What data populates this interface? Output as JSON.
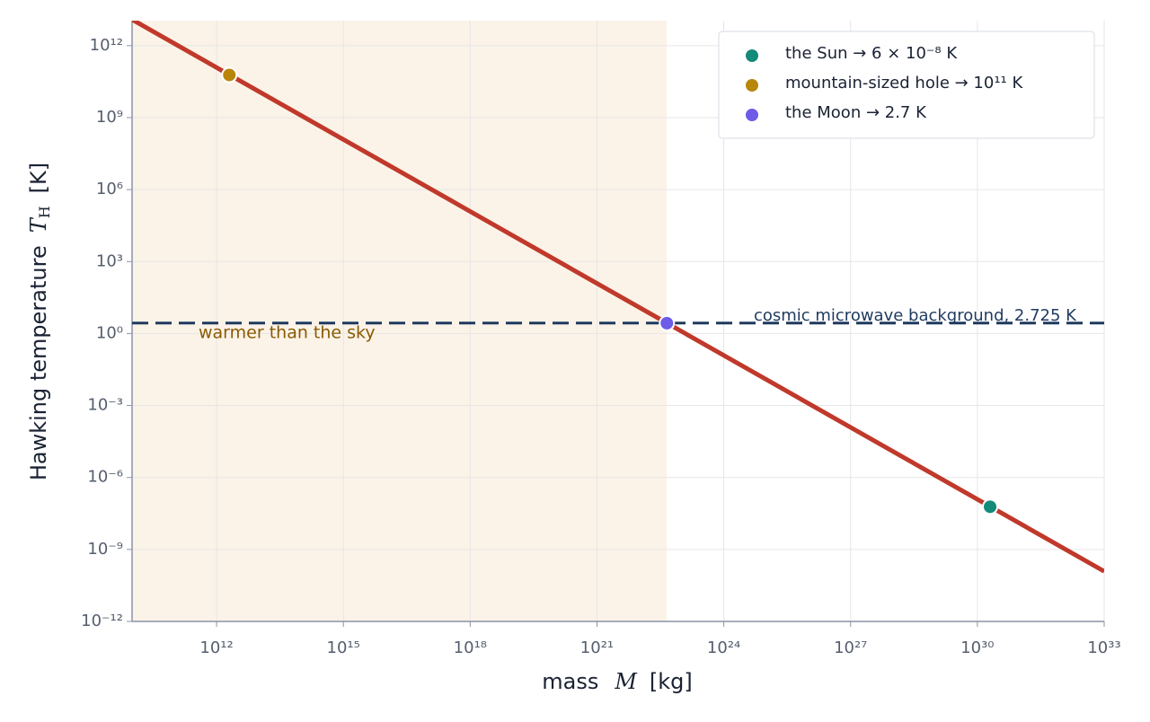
{
  "chart_data": {
    "type": "line",
    "x_label": {
      "text": "mass",
      "symbol": "M",
      "unit": "[kg]"
    },
    "y_label": {
      "text": "Hawking temperature",
      "symbol": "T",
      "subscript": "H",
      "unit": "[K]"
    },
    "xscale": "log",
    "yscale": "log",
    "grid": true,
    "legend": "upper right",
    "xlim": [
      10000000000.0,
      1e+33
    ],
    "xticks": [
      {
        "value": 1000000000000.0,
        "label": "10¹²"
      },
      {
        "value": 1000000000000000.0,
        "label": "10¹⁵"
      },
      {
        "value": 1e+18,
        "label": "10¹⁸"
      },
      {
        "value": 1e+21,
        "label": "10²¹"
      },
      {
        "value": 1e+24,
        "label": "10²⁴"
      },
      {
        "value": 1e+27,
        "label": "10²⁷"
      },
      {
        "value": 1e+30,
        "label": "10³⁰"
      },
      {
        "value": 1e+33,
        "label": "10³³"
      }
    ],
    "ylim": [
      1e-12,
      11000000000000.0
    ],
    "yticks": [
      {
        "value": 1e-12,
        "label": "10⁻¹²"
      },
      {
        "value": 1e-09,
        "label": "10⁻⁹"
      },
      {
        "value": 1e-06,
        "label": "10⁻⁶"
      },
      {
        "value": 0.001,
        "label": "10⁻³"
      },
      {
        "value": 1,
        "label": "10⁰"
      },
      {
        "value": 1000.0,
        "label": "10³"
      },
      {
        "value": 1000000.0,
        "label": "10⁶"
      },
      {
        "value": 1000000000.0,
        "label": "10⁹"
      },
      {
        "value": 1000000000000.0,
        "label": "10¹²"
      }
    ],
    "series": [
      {
        "color": "#c0392b",
        "x": [
          10000000000.0,
          1e+33
        ],
        "values": [
          12270000000000.0,
          1.227e-10
        ]
      }
    ],
    "reference_line": {
      "value": 2.725,
      "label": "cosmic microwave background, 2.725 K",
      "color": "#1f3a5f"
    },
    "shade": {
      "x": [
        10000000000.0,
        4.5e+22
      ],
      "label": "warmer than the sky",
      "color": "#fbf3e8",
      "label_color": "#8a5a00"
    },
    "points": [
      {
        "name": "the Sun  →  6 × 10⁻⁸ K",
        "x": 2e+30,
        "y": 6e-08,
        "color": "#138a7a"
      },
      {
        "name": "mountain-sized hole  →  10¹¹ K",
        "x": 2000000000000.0,
        "y": 60000000000.0,
        "color": "#b8860b"
      },
      {
        "name": "the Moon  →  2.7 K",
        "x": 4.5e+22,
        "y": 2.7,
        "color": "#6c5ce7"
      }
    ]
  }
}
